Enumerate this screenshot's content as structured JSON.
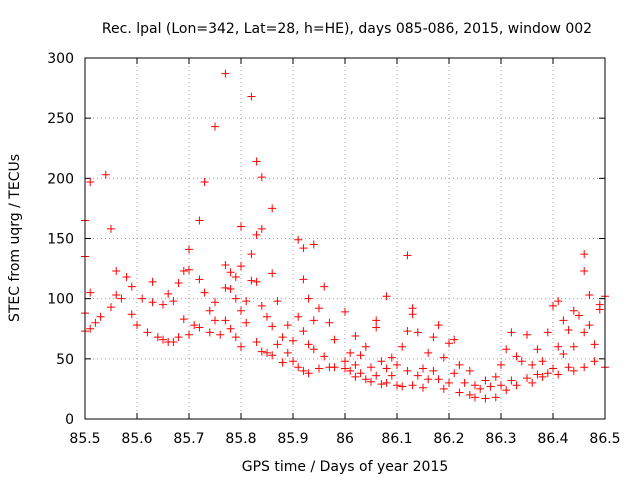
{
  "chart_data": {
    "type": "scatter",
    "title": "Rec. lpal (Lon=342, Lat=28, h=HE), days 085-086, 2015, window 002",
    "xlabel": "GPS time / Days of year 2015",
    "ylabel": "STEC from uqrg / TECUs",
    "xlim": [
      85.5,
      86.5
    ],
    "ylim": [
      0,
      300
    ],
    "xticks": [
      "85.5",
      "85.6",
      "85.7",
      "85.8",
      "85.9",
      "86",
      "86.1",
      "86.2",
      "86.3",
      "86.4",
      "86.5"
    ],
    "yticks": [
      "0",
      "50",
      "100",
      "150",
      "200",
      "250",
      "300"
    ],
    "grid": true,
    "marker": "+",
    "color": "#ff0000",
    "series": [
      {
        "points": [
          [
            85.5,
            165
          ],
          [
            85.5,
            135
          ],
          [
            85.51,
            197
          ],
          [
            85.51,
            105
          ],
          [
            85.5,
            88
          ],
          [
            85.5,
            73
          ],
          [
            85.51,
            75
          ],
          [
            85.52,
            80
          ],
          [
            85.54,
            203
          ],
          [
            85.53,
            85
          ],
          [
            85.55,
            158
          ],
          [
            85.55,
            93
          ],
          [
            85.56,
            123
          ],
          [
            85.56,
            103
          ],
          [
            85.57,
            100
          ],
          [
            85.58,
            118
          ],
          [
            85.59,
            110
          ],
          [
            85.59,
            87
          ],
          [
            85.6,
            78
          ],
          [
            85.61,
            100
          ],
          [
            85.62,
            72
          ],
          [
            85.63,
            114
          ],
          [
            85.63,
            97
          ],
          [
            85.64,
            68
          ],
          [
            85.65,
            95
          ],
          [
            85.65,
            66
          ],
          [
            85.66,
            104
          ],
          [
            85.66,
            64
          ],
          [
            85.67,
            98
          ],
          [
            85.67,
            64
          ],
          [
            85.68,
            113
          ],
          [
            85.68,
            68
          ],
          [
            85.69,
            123
          ],
          [
            85.69,
            83
          ],
          [
            85.7,
            141
          ],
          [
            85.7,
            124
          ],
          [
            85.7,
            70
          ],
          [
            85.71,
            78
          ],
          [
            85.72,
            165
          ],
          [
            85.72,
            116
          ],
          [
            85.72,
            76
          ],
          [
            85.73,
            197
          ],
          [
            85.73,
            105
          ],
          [
            85.74,
            90
          ],
          [
            85.74,
            72
          ],
          [
            85.75,
            243
          ],
          [
            85.75,
            97
          ],
          [
            85.75,
            82
          ],
          [
            85.76,
            70
          ],
          [
            85.77,
            287
          ],
          [
            85.77,
            128
          ],
          [
            85.77,
            109
          ],
          [
            85.77,
            82
          ],
          [
            85.78,
            122
          ],
          [
            85.78,
            108
          ],
          [
            85.78,
            75
          ],
          [
            85.79,
            118
          ],
          [
            85.79,
            100
          ],
          [
            85.79,
            68
          ],
          [
            85.8,
            160
          ],
          [
            85.8,
            127
          ],
          [
            85.8,
            90
          ],
          [
            85.8,
            60
          ],
          [
            85.81,
            98
          ],
          [
            85.81,
            80
          ],
          [
            85.82,
            268
          ],
          [
            85.82,
            137
          ],
          [
            85.82,
            115
          ],
          [
            85.83,
            214
          ],
          [
            85.83,
            153
          ],
          [
            85.83,
            114
          ],
          [
            85.83,
            64
          ],
          [
            85.84,
            201
          ],
          [
            85.84,
            158
          ],
          [
            85.84,
            94
          ],
          [
            85.84,
            56
          ],
          [
            85.85,
            85
          ],
          [
            85.85,
            55
          ],
          [
            85.86,
            175
          ],
          [
            85.86,
            121
          ],
          [
            85.86,
            77
          ],
          [
            85.86,
            53
          ],
          [
            85.87,
            98
          ],
          [
            85.87,
            62
          ],
          [
            85.88,
            68
          ],
          [
            85.88,
            47
          ],
          [
            85.89,
            78
          ],
          [
            85.89,
            55
          ],
          [
            85.9,
            65
          ],
          [
            85.9,
            48
          ],
          [
            85.91,
            149
          ],
          [
            85.91,
            85
          ],
          [
            85.91,
            43
          ],
          [
            85.92,
            142
          ],
          [
            85.92,
            116
          ],
          [
            85.92,
            73
          ],
          [
            85.92,
            40
          ],
          [
            85.93,
            100
          ],
          [
            85.93,
            62
          ],
          [
            85.93,
            38
          ],
          [
            85.94,
            145
          ],
          [
            85.94,
            82
          ],
          [
            85.94,
            58
          ],
          [
            85.95,
            92
          ],
          [
            85.95,
            42
          ],
          [
            85.96,
            110
          ],
          [
            85.96,
            52
          ],
          [
            85.97,
            80
          ],
          [
            85.97,
            43
          ],
          [
            85.98,
            66
          ],
          [
            85.98,
            43
          ],
          [
            86.0,
            89
          ],
          [
            86.0,
            48
          ],
          [
            86.0,
            42
          ],
          [
            86.01,
            55
          ],
          [
            86.01,
            40
          ],
          [
            86.02,
            69
          ],
          [
            86.02,
            45
          ],
          [
            86.02,
            35
          ],
          [
            86.03,
            53
          ],
          [
            86.03,
            38
          ],
          [
            86.04,
            60
          ],
          [
            86.04,
            33
          ],
          [
            86.05,
            43
          ],
          [
            86.05,
            31
          ],
          [
            86.06,
            82
          ],
          [
            86.06,
            76
          ],
          [
            86.06,
            36
          ],
          [
            86.07,
            48
          ],
          [
            86.07,
            29
          ],
          [
            86.08,
            102
          ],
          [
            86.08,
            42
          ],
          [
            86.08,
            30
          ],
          [
            86.09,
            51
          ],
          [
            86.09,
            36
          ],
          [
            86.1,
            45
          ],
          [
            86.1,
            28
          ],
          [
            86.11,
            60
          ],
          [
            86.11,
            27
          ],
          [
            86.12,
            136
          ],
          [
            86.12,
            73
          ],
          [
            86.12,
            40
          ],
          [
            86.13,
            92
          ],
          [
            86.13,
            87
          ],
          [
            86.13,
            28
          ],
          [
            86.14,
            72
          ],
          [
            86.14,
            36
          ],
          [
            86.15,
            42
          ],
          [
            86.15,
            26
          ],
          [
            86.16,
            55
          ],
          [
            86.16,
            33
          ],
          [
            86.17,
            68
          ],
          [
            86.17,
            40
          ],
          [
            86.18,
            78
          ],
          [
            86.18,
            33
          ],
          [
            86.19,
            51
          ],
          [
            86.19,
            25
          ],
          [
            86.2,
            63
          ],
          [
            86.2,
            30
          ],
          [
            86.21,
            66
          ],
          [
            86.21,
            38
          ],
          [
            86.22,
            45
          ],
          [
            86.22,
            22
          ],
          [
            86.23,
            30
          ],
          [
            86.24,
            40
          ],
          [
            86.24,
            20
          ],
          [
            86.25,
            28
          ],
          [
            86.25,
            18
          ],
          [
            86.26,
            25
          ],
          [
            86.27,
            32
          ],
          [
            86.27,
            17
          ],
          [
            86.28,
            27
          ],
          [
            86.29,
            35
          ],
          [
            86.29,
            18
          ],
          [
            86.3,
            45
          ],
          [
            86.3,
            28
          ],
          [
            86.31,
            58
          ],
          [
            86.31,
            24
          ],
          [
            86.32,
            72
          ],
          [
            86.32,
            32
          ],
          [
            86.33,
            52
          ],
          [
            86.33,
            28
          ],
          [
            86.34,
            48
          ],
          [
            86.35,
            70
          ],
          [
            86.35,
            34
          ],
          [
            86.36,
            45
          ],
          [
            86.36,
            30
          ],
          [
            86.37,
            58
          ],
          [
            86.37,
            37
          ],
          [
            86.38,
            48
          ],
          [
            86.38,
            35
          ],
          [
            86.39,
            72
          ],
          [
            86.39,
            38
          ],
          [
            86.4,
            94
          ],
          [
            86.4,
            42
          ],
          [
            86.41,
            98
          ],
          [
            86.41,
            60
          ],
          [
            86.41,
            37
          ],
          [
            86.42,
            82
          ],
          [
            86.42,
            54
          ],
          [
            86.43,
            74
          ],
          [
            86.43,
            43
          ],
          [
            86.44,
            90
          ],
          [
            86.44,
            60
          ],
          [
            86.44,
            40
          ],
          [
            86.45,
            86
          ],
          [
            86.46,
            137
          ],
          [
            86.46,
            123
          ],
          [
            86.46,
            72
          ],
          [
            86.46,
            43
          ],
          [
            86.47,
            103
          ],
          [
            86.47,
            78
          ],
          [
            86.48,
            62
          ],
          [
            86.48,
            48
          ],
          [
            86.49,
            95
          ],
          [
            86.49,
            91
          ],
          [
            86.5,
            102
          ],
          [
            86.5,
            43
          ]
        ]
      }
    ]
  }
}
